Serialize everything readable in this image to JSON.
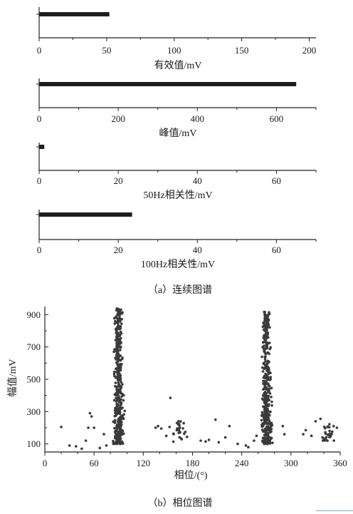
{
  "chart_data": [
    {
      "id": "rms",
      "type": "bar",
      "orientation": "horizontal",
      "values": [
        52
      ],
      "xlim": [
        0,
        205
      ],
      "xticks": [
        0,
        50,
        100,
        150,
        200
      ],
      "xlabel": "有效值/mV"
    },
    {
      "id": "peak",
      "type": "bar",
      "orientation": "horizontal",
      "values": [
        650
      ],
      "xlim": [
        0,
        700
      ],
      "xticks": [
        0,
        200,
        400,
        600
      ],
      "xlabel": "峰值/mV"
    },
    {
      "id": "corr50",
      "type": "bar",
      "orientation": "horizontal",
      "values": [
        1.3
      ],
      "xlim": [
        0,
        70
      ],
      "xticks": [
        0,
        20,
        40,
        60
      ],
      "xlabel": "50Hz相关性/mV"
    },
    {
      "id": "corr100",
      "type": "bar",
      "orientation": "horizontal",
      "values": [
        23.5
      ],
      "xlim": [
        0,
        70
      ],
      "xticks": [
        0,
        20,
        40,
        60
      ],
      "xlabel": "100Hz相关性/mV"
    },
    {
      "id": "phase",
      "type": "scatter",
      "xlim": [
        0,
        360
      ],
      "ylim": [
        50,
        950
      ],
      "xticks": [
        0,
        60,
        120,
        180,
        240,
        300,
        360
      ],
      "yticks": [
        100,
        300,
        500,
        700,
        900
      ],
      "xlabel": "相位/(°)",
      "ylabel": "幅值/mV",
      "clusters": [
        {
          "center_phase": 90,
          "phase_spread": 3,
          "amp_min": 100,
          "amp_max": 940,
          "count": 420
        },
        {
          "center_phase": 270,
          "phase_spread": 3,
          "amp_min": 100,
          "amp_max": 920,
          "count": 400
        },
        {
          "center_phase": 165,
          "phase_spread": 4,
          "amp_min": 110,
          "amp_max": 250,
          "count": 25
        },
        {
          "center_phase": 345,
          "phase_spread": 4,
          "amp_min": 120,
          "amp_max": 250,
          "count": 28
        }
      ],
      "points": [
        [
          20,
          205
        ],
        [
          30,
          90
        ],
        [
          38,
          85
        ],
        [
          45,
          70
        ],
        [
          50,
          120
        ],
        [
          53,
          200
        ],
        [
          55,
          290
        ],
        [
          57,
          270
        ],
        [
          60,
          200
        ],
        [
          67,
          75
        ],
        [
          72,
          160
        ],
        [
          75,
          90
        ],
        [
          135,
          200
        ],
        [
          138,
          210
        ],
        [
          142,
          195
        ],
        [
          148,
          150
        ],
        [
          152,
          205
        ],
        [
          153,
          385
        ],
        [
          157,
          160
        ],
        [
          190,
          120
        ],
        [
          196,
          115
        ],
        [
          200,
          125
        ],
        [
          208,
          250
        ],
        [
          212,
          110
        ],
        [
          220,
          140
        ],
        [
          225,
          210
        ],
        [
          235,
          100
        ],
        [
          245,
          90
        ],
        [
          248,
          80
        ],
        [
          255,
          120
        ],
        [
          258,
          150
        ],
        [
          290,
          210
        ],
        [
          292,
          160
        ],
        [
          315,
          160
        ],
        [
          318,
          185
        ],
        [
          325,
          150
        ],
        [
          330,
          240
        ],
        [
          336,
          255
        ],
        [
          352,
          210
        ],
        [
          356,
          200
        ]
      ]
    }
  ],
  "captions": {
    "a": "（a）连续图谱",
    "b": "（b）相位图谱"
  }
}
